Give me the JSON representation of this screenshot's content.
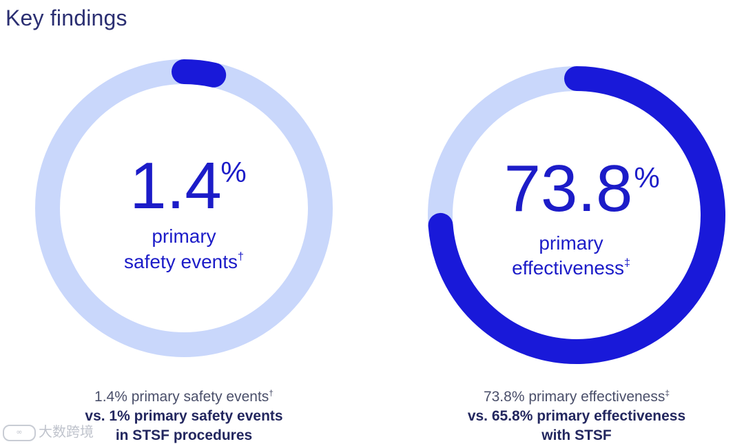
{
  "header": {
    "title": "Key findings"
  },
  "colors": {
    "track": "#c9d7fb",
    "fill": "#1919d9",
    "value_text": "#1c1cc8"
  },
  "chart_data": [
    {
      "type": "pie",
      "value": 1.4,
      "unit": "%",
      "value_label": "1.4",
      "unit_label": "%",
      "center_line1": "primary",
      "center_line2": "safety events",
      "center_mark": "†",
      "caption_lead": "1.4% primary safety events",
      "caption_mark": "†",
      "caption_strong1": "vs. 1% primary safety events",
      "caption_strong2": "in STSF procedures"
    },
    {
      "type": "pie",
      "value": 73.8,
      "unit": "%",
      "value_label": "73.8",
      "unit_label": "%",
      "center_line1": "primary",
      "center_line2": "effectiveness",
      "center_mark": "‡",
      "caption_lead": "73.8% primary effectiveness",
      "caption_mark": "‡",
      "caption_strong1": "vs. 65.8% primary effectiveness",
      "caption_strong2": "with STSF"
    }
  ],
  "watermark": {
    "logo_text": "∞",
    "text": "大数跨境"
  }
}
